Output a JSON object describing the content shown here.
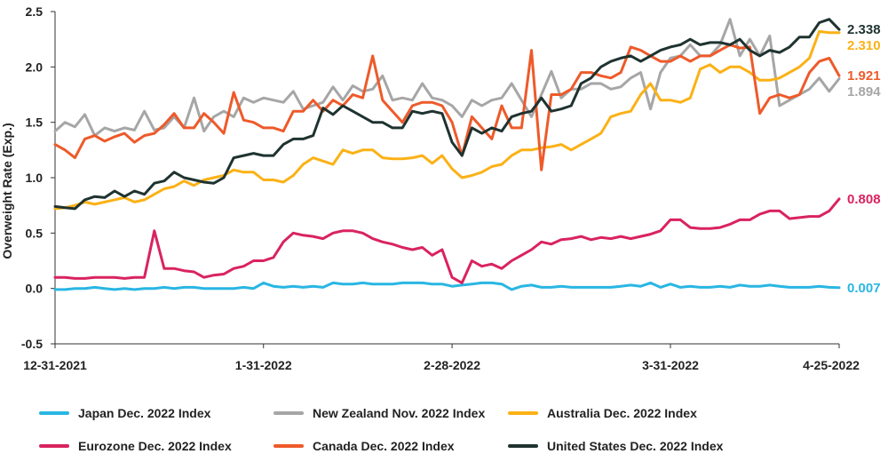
{
  "chart_data": {
    "type": "line",
    "title": "",
    "xlabel": "",
    "ylabel": "Overweight Rate (Exp.)",
    "ylim": [
      -0.5,
      2.5
    ],
    "yticks": [
      "-0.5",
      "0.0",
      "0.5",
      "1.0",
      "1.5",
      "2.0",
      "2.5"
    ],
    "x_tick_labels": [
      "12-31-2021",
      "1-31-2022",
      "2-28-2022",
      "3-31-2022",
      "4-25-2022"
    ],
    "x_tick_index": [
      0,
      21,
      40,
      62,
      79
    ],
    "x_count": 80,
    "grid": false,
    "legend_position": "bottom",
    "series": [
      {
        "name": "Japan Dec. 2022 Index",
        "color": "#29b6e3",
        "end_label": "0.007",
        "values": [
          -0.01,
          -0.01,
          0.0,
          0.0,
          0.01,
          0.0,
          -0.01,
          0.0,
          -0.01,
          0.0,
          0.0,
          0.01,
          0.0,
          0.01,
          0.01,
          0.0,
          0.0,
          0.0,
          0.0,
          0.01,
          0.0,
          0.05,
          0.02,
          0.01,
          0.02,
          0.01,
          0.02,
          0.01,
          0.05,
          0.04,
          0.04,
          0.05,
          0.04,
          0.04,
          0.04,
          0.05,
          0.05,
          0.05,
          0.04,
          0.04,
          0.02,
          0.03,
          0.04,
          0.05,
          0.05,
          0.04,
          -0.01,
          0.02,
          0.03,
          0.01,
          0.01,
          0.02,
          0.01,
          0.01,
          0.01,
          0.01,
          0.01,
          0.02,
          0.03,
          0.02,
          0.05,
          0.01,
          0.04,
          0.01,
          0.02,
          0.01,
          0.01,
          0.02,
          0.01,
          0.03,
          0.02,
          0.02,
          0.03,
          0.02,
          0.01,
          0.01,
          0.01,
          0.02,
          0.01,
          0.007
        ]
      },
      {
        "name": "New Zealand Nov. 2022 Index",
        "color": "#a6a6a6",
        "end_label": "1.894",
        "values": [
          1.42,
          1.5,
          1.46,
          1.57,
          1.38,
          1.45,
          1.42,
          1.45,
          1.43,
          1.6,
          1.43,
          1.45,
          1.55,
          1.45,
          1.72,
          1.42,
          1.55,
          1.6,
          1.55,
          1.72,
          1.68,
          1.72,
          1.7,
          1.68,
          1.78,
          1.62,
          1.65,
          1.68,
          1.82,
          1.7,
          1.83,
          1.78,
          1.8,
          1.92,
          1.7,
          1.72,
          1.7,
          1.85,
          1.72,
          1.7,
          1.65,
          1.55,
          1.7,
          1.65,
          1.7,
          1.72,
          1.85,
          1.7,
          1.55,
          1.75,
          1.96,
          1.72,
          1.8,
          1.8,
          1.85,
          1.85,
          1.8,
          1.82,
          1.9,
          1.95,
          1.62,
          1.95,
          2.08,
          2.1,
          2.2,
          2.1,
          2.1,
          2.2,
          2.43,
          2.1,
          2.25,
          2.1,
          2.28,
          1.65,
          1.7,
          1.75,
          1.8,
          1.9,
          1.78,
          1.894
        ]
      },
      {
        "name": "Australia Dec. 2022 Index",
        "color": "#fbb116",
        "end_label": "2.310",
        "values": [
          0.72,
          0.73,
          0.75,
          0.78,
          0.76,
          0.78,
          0.8,
          0.82,
          0.78,
          0.8,
          0.85,
          0.9,
          0.92,
          0.97,
          0.93,
          0.98,
          1.0,
          1.02,
          1.07,
          1.05,
          1.05,
          0.98,
          0.98,
          0.96,
          1.02,
          1.12,
          1.18,
          1.15,
          1.12,
          1.25,
          1.22,
          1.25,
          1.25,
          1.18,
          1.17,
          1.17,
          1.18,
          1.2,
          1.13,
          1.2,
          1.08,
          1.0,
          1.02,
          1.05,
          1.1,
          1.12,
          1.2,
          1.25,
          1.25,
          1.27,
          1.28,
          1.3,
          1.25,
          1.3,
          1.35,
          1.4,
          1.55,
          1.58,
          1.6,
          1.75,
          1.85,
          1.7,
          1.7,
          1.68,
          1.72,
          1.98,
          2.02,
          1.95,
          2.0,
          2.0,
          1.95,
          1.88,
          1.88,
          1.9,
          1.95,
          2.0,
          2.08,
          2.32,
          2.31,
          2.31
        ]
      },
      {
        "name": "Eurozone Dec. 2022 Index",
        "color": "#d9235f",
        "end_label": "0.808",
        "values": [
          0.1,
          0.1,
          0.09,
          0.09,
          0.1,
          0.1,
          0.1,
          0.09,
          0.1,
          0.1,
          0.52,
          0.18,
          0.18,
          0.16,
          0.15,
          0.1,
          0.12,
          0.13,
          0.18,
          0.2,
          0.25,
          0.25,
          0.28,
          0.42,
          0.5,
          0.48,
          0.47,
          0.45,
          0.5,
          0.52,
          0.52,
          0.5,
          0.45,
          0.42,
          0.4,
          0.37,
          0.35,
          0.37,
          0.3,
          0.35,
          0.1,
          0.05,
          0.25,
          0.2,
          0.22,
          0.18,
          0.25,
          0.3,
          0.35,
          0.42,
          0.4,
          0.44,
          0.45,
          0.47,
          0.44,
          0.46,
          0.45,
          0.47,
          0.45,
          0.47,
          0.49,
          0.52,
          0.62,
          0.62,
          0.55,
          0.54,
          0.54,
          0.55,
          0.58,
          0.62,
          0.62,
          0.67,
          0.7,
          0.7,
          0.63,
          0.64,
          0.65,
          0.65,
          0.7,
          0.808
        ]
      },
      {
        "name": "Canada Dec. 2022 Index",
        "color": "#ee5a2a",
        "end_label": "1.921",
        "values": [
          1.3,
          1.25,
          1.18,
          1.35,
          1.38,
          1.33,
          1.37,
          1.4,
          1.32,
          1.38,
          1.4,
          1.48,
          1.58,
          1.45,
          1.45,
          1.58,
          1.5,
          1.4,
          1.77,
          1.52,
          1.5,
          1.45,
          1.45,
          1.42,
          1.6,
          1.6,
          1.7,
          1.6,
          1.7,
          1.65,
          1.75,
          1.72,
          2.1,
          1.7,
          1.6,
          1.5,
          1.65,
          1.68,
          1.68,
          1.65,
          1.5,
          1.2,
          1.55,
          1.45,
          1.35,
          1.65,
          1.45,
          1.45,
          2.15,
          1.07,
          1.75,
          1.75,
          1.8,
          1.95,
          1.95,
          1.92,
          1.9,
          1.95,
          2.18,
          2.15,
          2.1,
          2.05,
          2.05,
          2.1,
          2.05,
          2.1,
          2.1,
          2.15,
          2.2,
          2.17,
          2.18,
          1.58,
          1.72,
          1.75,
          1.72,
          1.75,
          1.95,
          2.05,
          2.08,
          1.921
        ]
      },
      {
        "name": "United States Dec. 2022 Index",
        "color": "#1f3330",
        "end_label": "2.338",
        "values": [
          0.74,
          0.73,
          0.72,
          0.8,
          0.83,
          0.82,
          0.88,
          0.83,
          0.88,
          0.85,
          0.95,
          0.97,
          1.05,
          1.0,
          0.98,
          0.96,
          0.95,
          1.0,
          1.18,
          1.2,
          1.22,
          1.2,
          1.2,
          1.3,
          1.35,
          1.35,
          1.38,
          1.63,
          1.57,
          1.65,
          1.6,
          1.55,
          1.5,
          1.5,
          1.45,
          1.45,
          1.6,
          1.58,
          1.6,
          1.58,
          1.32,
          1.2,
          1.45,
          1.4,
          1.45,
          1.42,
          1.55,
          1.58,
          1.6,
          1.72,
          1.6,
          1.62,
          1.65,
          1.85,
          1.9,
          2.0,
          2.05,
          2.08,
          2.1,
          2.05,
          2.1,
          2.15,
          2.18,
          2.2,
          2.25,
          2.2,
          2.22,
          2.22,
          2.2,
          2.25,
          2.15,
          2.1,
          2.15,
          2.13,
          2.18,
          2.27,
          2.27,
          2.4,
          2.43,
          2.338
        ]
      }
    ]
  }
}
